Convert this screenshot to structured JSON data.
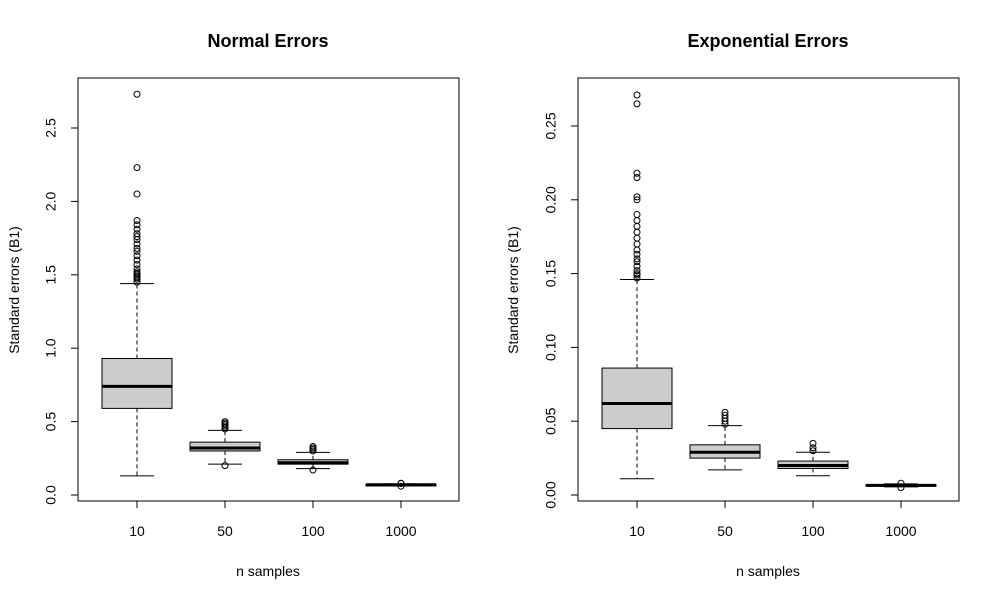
{
  "chart_data": [
    {
      "type": "boxplot",
      "title": "Normal Errors",
      "xlabel": "n samples",
      "ylabel": "Standard errors (B1)",
      "categories": [
        "10",
        "50",
        "100",
        "1000"
      ],
      "ylim": [
        0,
        2.8
      ],
      "yticks": [
        "0.0",
        "0.5",
        "1.0",
        "1.5",
        "2.0",
        "2.5"
      ],
      "box_fill": "#cccccc",
      "boxes": [
        {
          "min": 0.13,
          "q1": 0.59,
          "median": 0.74,
          "q3": 0.93,
          "max": 1.44,
          "outliers": [
            1.45,
            1.47,
            1.48,
            1.49,
            1.5,
            1.51,
            1.52,
            1.54,
            1.57,
            1.6,
            1.63,
            1.66,
            1.68,
            1.71,
            1.74,
            1.76,
            1.78,
            1.81,
            1.84,
            1.87,
            2.05,
            2.23,
            2.73
          ]
        },
        {
          "min": 0.21,
          "q1": 0.3,
          "median": 0.32,
          "q3": 0.36,
          "max": 0.44,
          "outliers": [
            0.2,
            0.45,
            0.46,
            0.47,
            0.48,
            0.49,
            0.5
          ]
        },
        {
          "min": 0.18,
          "q1": 0.21,
          "median": 0.22,
          "q3": 0.24,
          "max": 0.29,
          "outliers": [
            0.17,
            0.3,
            0.31,
            0.32,
            0.33
          ]
        },
        {
          "min": 0.063,
          "q1": 0.068,
          "median": 0.07,
          "q3": 0.072,
          "max": 0.076,
          "outliers": [
            0.06,
            0.078,
            0.08
          ]
        }
      ]
    },
    {
      "type": "boxplot",
      "title": "Exponential Errors",
      "xlabel": "n samples",
      "ylabel": "Standard errors (B1)",
      "categories": [
        "10",
        "50",
        "100",
        "1000"
      ],
      "ylim": [
        0,
        0.28
      ],
      "yticks": [
        "0.00",
        "0.05",
        "0.10",
        "0.15",
        "0.20",
        "0.25"
      ],
      "box_fill": "#cccccc",
      "boxes": [
        {
          "min": 0.011,
          "q1": 0.045,
          "median": 0.062,
          "q3": 0.086,
          "max": 0.146,
          "outliers": [
            0.147,
            0.149,
            0.15,
            0.152,
            0.155,
            0.158,
            0.16,
            0.163,
            0.166,
            0.17,
            0.174,
            0.178,
            0.182,
            0.186,
            0.19,
            0.2,
            0.202,
            0.215,
            0.218,
            0.265,
            0.271
          ]
        },
        {
          "min": 0.017,
          "q1": 0.025,
          "median": 0.029,
          "q3": 0.034,
          "max": 0.047,
          "outliers": [
            0.048,
            0.05,
            0.052,
            0.054,
            0.056
          ]
        },
        {
          "min": 0.013,
          "q1": 0.018,
          "median": 0.02,
          "q3": 0.023,
          "max": 0.029,
          "outliers": [
            0.03,
            0.032,
            0.035
          ]
        },
        {
          "min": 0.0055,
          "q1": 0.006,
          "median": 0.0065,
          "q3": 0.007,
          "max": 0.0075,
          "outliers": [
            0.005,
            0.008
          ]
        }
      ]
    }
  ]
}
